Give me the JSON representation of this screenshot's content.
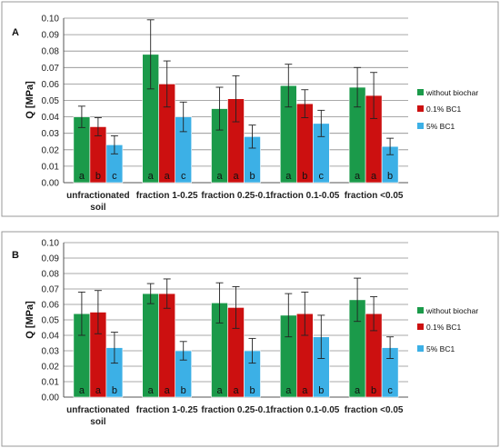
{
  "y_axis_title": "Q [MPa]",
  "chart_data": [
    {
      "type": "bar",
      "panel": "A",
      "ylabel": "Q [MPa]",
      "ylim": [
        0,
        0.1
      ],
      "yticks": [
        "0.00",
        "0.01",
        "0.02",
        "0.03",
        "0.04",
        "0.05",
        "0.06",
        "0.07",
        "0.08",
        "0.09",
        "0.10"
      ],
      "grid": true,
      "legend_position": "right",
      "categories": [
        [
          "unfractionated",
          "soil"
        ],
        [
          "fraction 1-0.25"
        ],
        [
          "fraction 0.25-0.1"
        ],
        [
          "fraction 0.1-0.05"
        ],
        [
          "fraction <0.05"
        ]
      ],
      "series": [
        {
          "name": "without biochar",
          "color": "#1b9a4a",
          "values": [
            0.04,
            0.078,
            0.045,
            0.059,
            0.058
          ],
          "errors": [
            0.0065,
            0.021,
            0.013,
            0.013,
            0.012
          ],
          "letters": [
            "a",
            "a",
            "a",
            "a",
            "a"
          ]
        },
        {
          "name": "0.1% BC1",
          "color": "#cc1010",
          "values": [
            0.034,
            0.06,
            0.051,
            0.048,
            0.053
          ],
          "errors": [
            0.0055,
            0.014,
            0.014,
            0.0085,
            0.014
          ],
          "letters": [
            "b",
            "a",
            "a",
            "b",
            "a"
          ]
        },
        {
          "name": "5% BC1",
          "color": "#3cb0e6",
          "values": [
            0.023,
            0.04,
            0.028,
            0.036,
            0.022
          ],
          "errors": [
            0.0055,
            0.009,
            0.007,
            0.008,
            0.005
          ],
          "letters": [
            "c",
            "c",
            "b",
            "c",
            "b"
          ]
        }
      ]
    },
    {
      "type": "bar",
      "panel": "B",
      "ylabel": "Q [MPa]",
      "ylim": [
        0,
        0.1
      ],
      "yticks": [
        "0.00",
        "0.01",
        "0.02",
        "0.03",
        "0.04",
        "0.05",
        "0.06",
        "0.07",
        "0.08",
        "0.09",
        "0.10"
      ],
      "grid": true,
      "legend_position": "right",
      "categories": [
        [
          "unfractionated",
          "soil"
        ],
        [
          "fraction 1-0.25"
        ],
        [
          "fraction 0.25-0.1"
        ],
        [
          "fraction 0.1-0.05"
        ],
        [
          "fraction <0.05"
        ]
      ],
      "series": [
        {
          "name": "without biochar",
          "color": "#1b9a4a",
          "values": [
            0.054,
            0.067,
            0.061,
            0.053,
            0.063
          ],
          "errors": [
            0.014,
            0.0065,
            0.013,
            0.014,
            0.014
          ],
          "letters": [
            "a",
            "a",
            "a",
            "a",
            "a"
          ]
        },
        {
          "name": "0.1% BC1",
          "color": "#cc1010",
          "values": [
            0.055,
            0.067,
            0.058,
            0.054,
            0.054
          ],
          "errors": [
            0.014,
            0.0095,
            0.0135,
            0.014,
            0.011
          ],
          "letters": [
            "a",
            "a",
            "a",
            "a",
            "b"
          ]
        },
        {
          "name": "5% BC1",
          "color": "#3cb0e6",
          "values": [
            0.032,
            0.03,
            0.03,
            0.039,
            0.032
          ],
          "errors": [
            0.01,
            0.006,
            0.008,
            0.014,
            0.007
          ],
          "letters": [
            "b",
            "b",
            "b",
            "b",
            "c"
          ]
        }
      ]
    }
  ]
}
